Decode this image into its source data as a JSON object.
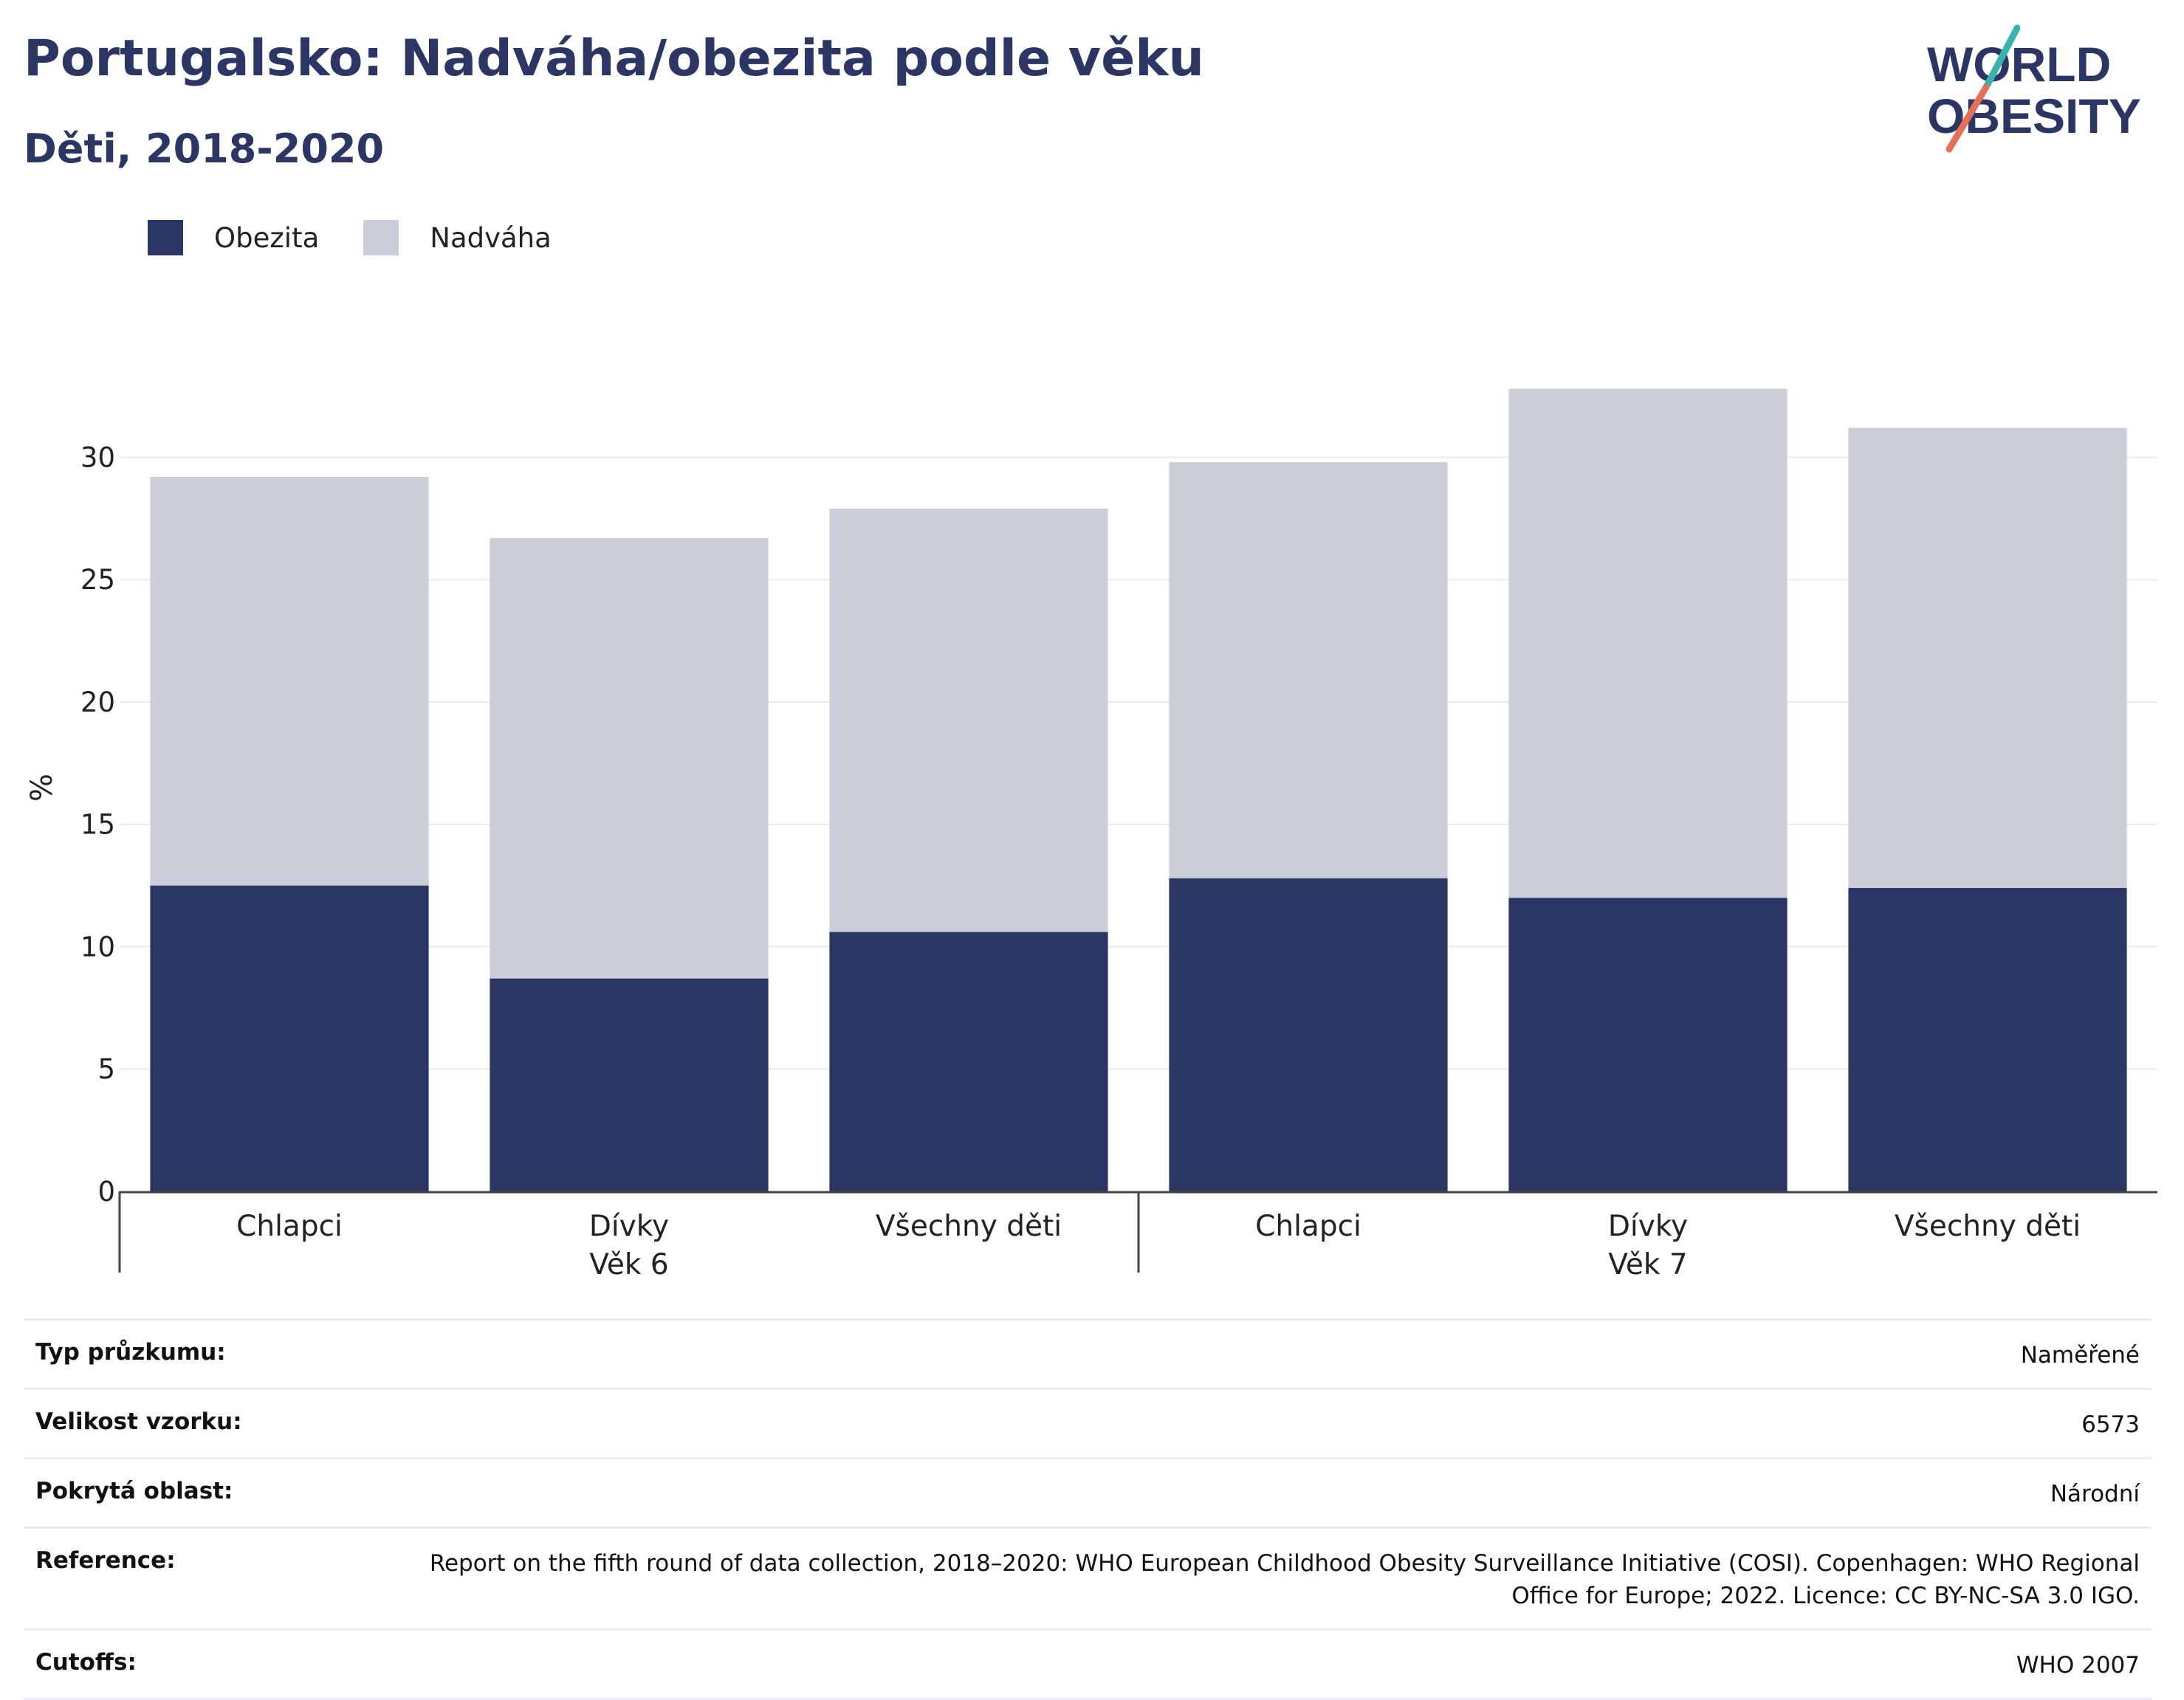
{
  "title": "Portugalsko: Nadváha/obezita podle věku",
  "subtitle": "Děti, 2018-2020",
  "logo": {
    "line1": "WORLD",
    "line2": "OBESITY"
  },
  "colors": {
    "obesity": "#2b3664",
    "overweight": "#cbcdd9",
    "title": "#2b3664"
  },
  "chart_data": {
    "type": "bar",
    "stacked": true,
    "categories": [
      "Chlapci",
      "Dívky",
      "Všechny děti",
      "Chlapci",
      "Dívky",
      "Všechny děti"
    ],
    "groups": [
      {
        "label": "Věk 6",
        "categories": [
          0,
          1,
          2
        ]
      },
      {
        "label": "Věk 7",
        "categories": [
          3,
          4,
          5
        ]
      }
    ],
    "series": [
      {
        "name": "Obezita",
        "color": "#2b3664",
        "values": [
          12.5,
          8.7,
          10.6,
          12.8,
          12.0,
          12.4
        ]
      },
      {
        "name": "Nadváha",
        "color": "#cbcdd9",
        "values": [
          16.7,
          18.0,
          17.3,
          17.0,
          20.8,
          18.8
        ]
      }
    ],
    "ylabel": "%",
    "xlabel": "",
    "ylim": [
      0,
      33
    ],
    "yticks": [
      0,
      5,
      10,
      15,
      20,
      25,
      30
    ],
    "grid": true,
    "legend": "top-left"
  },
  "metadata": [
    {
      "key": "Typ průzkumu:",
      "value": "Naměřené"
    },
    {
      "key": "Velikost vzorku:",
      "value": "6573"
    },
    {
      "key": "Pokrytá oblast:",
      "value": "Národní"
    },
    {
      "key": "Reference:",
      "value": "Report on the fifth round of data collection, 2018–2020: WHO European Childhood Obesity Surveillance Initiative (COSI). Copenhagen: WHO Regional Office for Europe; 2022. Licence: CC BY-NC-SA 3.0 IGO."
    },
    {
      "key": "Cutoffs:",
      "value": "WHO 2007"
    }
  ]
}
